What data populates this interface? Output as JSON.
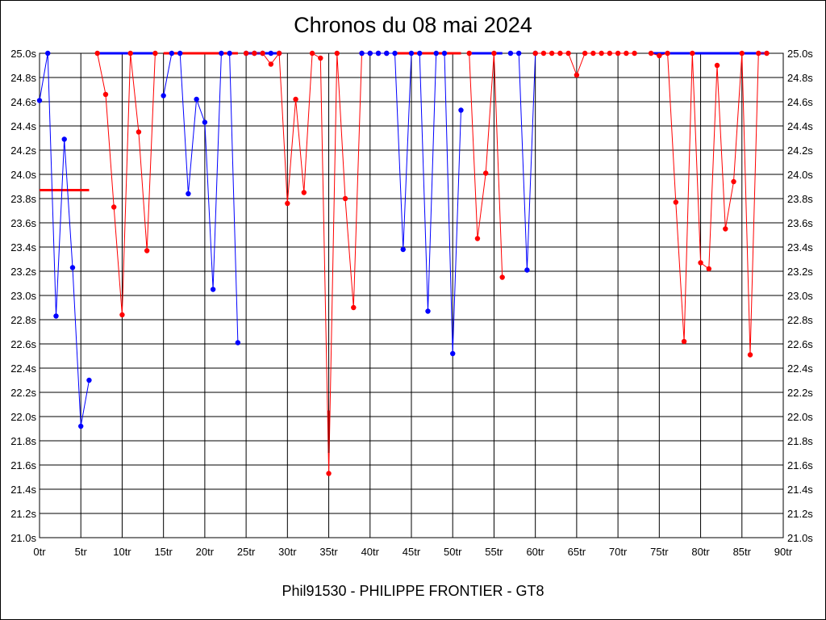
{
  "title": "Chronos du 08 mai 2024",
  "footer": "Phil91530 - PHILIPPE FRONTIER - GT8",
  "chart_data": {
    "type": "line",
    "title": "Chronos du 08 mai 2024",
    "xlabel": "",
    "ylabel": "",
    "x_tick_values": [
      0,
      5,
      10,
      15,
      20,
      25,
      30,
      35,
      40,
      45,
      50,
      55,
      60,
      65,
      70,
      75,
      80,
      85,
      90
    ],
    "x_tick_labels": [
      "0tr",
      "5tr",
      "10tr",
      "15tr",
      "20tr",
      "25tr",
      "30tr",
      "35tr",
      "40tr",
      "45tr",
      "50tr",
      "55tr",
      "60tr",
      "65tr",
      "70tr",
      "75tr",
      "80tr",
      "85tr",
      "90tr"
    ],
    "y_tick_values": [
      21.0,
      21.2,
      21.4,
      21.6,
      21.8,
      22.0,
      22.2,
      22.4,
      22.6,
      22.8,
      23.0,
      23.2,
      23.4,
      23.6,
      23.8,
      24.0,
      24.2,
      24.4,
      24.6,
      24.8,
      25.0
    ],
    "y_tick_labels": [
      "21.0s",
      "21.2s",
      "21.4s",
      "21.6s",
      "21.8s",
      "22.0s",
      "22.2s",
      "22.4s",
      "22.6s",
      "22.8s",
      "23.0s",
      "23.2s",
      "23.4s",
      "23.6s",
      "23.8s",
      "24.0s",
      "24.2s",
      "24.4s",
      "24.6s",
      "24.8s",
      "25.0s"
    ],
    "xlim": [
      0,
      90
    ],
    "ylim": [
      21.0,
      25.0
    ],
    "grid": true,
    "colors": {
      "blue": "#0000ff",
      "red": "#ff0000",
      "dark_red": "#990000"
    },
    "reference_line": {
      "color": "#ff0000",
      "x": [
        0,
        6
      ],
      "y": 23.87
    },
    "sessions": [
      {
        "color": "#0000ff",
        "points": [
          [
            0,
            24.61
          ],
          [
            1,
            25.0
          ],
          [
            2,
            22.83
          ],
          [
            3,
            24.29
          ],
          [
            4,
            23.23
          ],
          [
            5,
            21.92
          ],
          [
            6,
            22.3
          ]
        ]
      },
      {
        "color": "#0000ff",
        "points": [
          [
            7,
            25.0
          ],
          [
            14,
            25.0
          ]
        ]
      },
      {
        "color": "#ff0000",
        "points": [
          [
            7,
            25.0
          ],
          [
            8,
            24.66
          ],
          [
            9,
            23.73
          ],
          [
            10,
            22.84
          ],
          [
            11,
            25.0
          ],
          [
            12,
            24.35
          ],
          [
            13,
            23.37
          ],
          [
            14,
            25.0
          ]
        ]
      },
      {
        "color": "#0000ff",
        "points": [
          [
            15,
            24.65
          ],
          [
            16,
            25.0
          ],
          [
            17,
            25.0
          ],
          [
            18,
            23.84
          ],
          [
            19,
            24.62
          ],
          [
            20,
            24.43
          ],
          [
            21,
            23.05
          ],
          [
            22,
            25.0
          ],
          [
            23,
            25.0
          ],
          [
            24,
            22.61
          ]
        ]
      },
      {
        "color": "#ff0000",
        "points": [
          [
            15,
            25.0
          ],
          [
            24,
            25.0
          ]
        ]
      },
      {
        "color": "#0000ff",
        "points": [
          [
            25,
            25.0
          ],
          [
            26,
            25.0
          ],
          [
            27,
            25.0
          ],
          [
            28,
            25.0
          ],
          [
            29,
            25.0
          ]
        ]
      },
      {
        "color": "#ff0000",
        "points": [
          [
            25,
            25.0
          ],
          [
            26,
            25.0
          ],
          [
            27,
            25.0
          ],
          [
            28,
            24.91
          ],
          [
            29,
            25.0
          ],
          [
            30,
            23.76
          ],
          [
            31,
            24.62
          ],
          [
            32,
            23.85
          ],
          [
            33,
            25.0
          ],
          [
            34,
            24.96
          ],
          [
            35,
            21.53
          ],
          [
            36,
            25.0
          ],
          [
            37,
            23.8
          ],
          [
            38,
            22.9
          ],
          [
            39,
            25.0
          ],
          [
            40,
            25.0
          ],
          [
            41,
            25.0
          ],
          [
            42,
            25.0
          ]
        ]
      },
      {
        "color": "#0000ff",
        "points": [
          [
            39,
            25.0
          ],
          [
            40,
            25.0
          ],
          [
            41,
            25.0
          ],
          [
            42,
            25.0
          ],
          [
            43,
            25.0
          ],
          [
            44,
            23.38
          ],
          [
            45,
            25.0
          ],
          [
            46,
            25.0
          ],
          [
            47,
            22.87
          ],
          [
            48,
            25.0
          ],
          [
            49,
            25.0
          ],
          [
            50,
            22.52
          ],
          [
            51,
            24.53
          ]
        ]
      },
      {
        "color": "#ff0000",
        "points": [
          [
            43,
            25.0
          ],
          [
            51,
            25.0
          ]
        ]
      },
      {
        "color": "#0000ff",
        "points": [
          [
            52,
            25.0
          ],
          [
            56,
            25.0
          ]
        ]
      },
      {
        "color": "#ff0000",
        "points": [
          [
            52,
            25.0
          ],
          [
            53,
            23.47
          ],
          [
            54,
            24.01
          ],
          [
            55,
            25.0
          ],
          [
            56,
            23.15
          ]
        ]
      },
      {
        "color": "#0000ff",
        "points": [
          [
            57,
            25.0
          ],
          [
            58,
            25.0
          ],
          [
            59,
            23.21
          ],
          [
            60,
            25.0
          ]
        ]
      },
      {
        "color": "#ff0000",
        "points": [
          [
            60,
            25.0
          ],
          [
            61,
            25.0
          ],
          [
            62,
            25.0
          ],
          [
            63,
            25.0
          ],
          [
            64,
            25.0
          ],
          [
            65,
            24.82
          ],
          [
            66,
            25.0
          ],
          [
            67,
            25.0
          ],
          [
            68,
            25.0
          ],
          [
            69,
            25.0
          ],
          [
            70,
            25.0
          ],
          [
            71,
            25.0
          ],
          [
            72,
            25.0
          ]
        ]
      },
      {
        "color": "#0000ff",
        "points": [
          [
            74,
            25.0
          ],
          [
            88,
            25.0
          ]
        ]
      },
      {
        "color": "#ff0000",
        "points": [
          [
            74,
            25.0
          ],
          [
            75,
            24.98
          ],
          [
            76,
            25.0
          ],
          [
            77,
            23.77
          ],
          [
            78,
            22.62
          ],
          [
            79,
            25.0
          ],
          [
            80,
            23.27
          ],
          [
            81,
            23.22
          ],
          [
            82,
            24.9
          ],
          [
            83,
            23.55
          ],
          [
            84,
            23.94
          ],
          [
            85,
            25.0
          ],
          [
            86,
            22.51
          ],
          [
            87,
            25.0
          ],
          [
            88,
            25.0
          ]
        ]
      }
    ]
  }
}
